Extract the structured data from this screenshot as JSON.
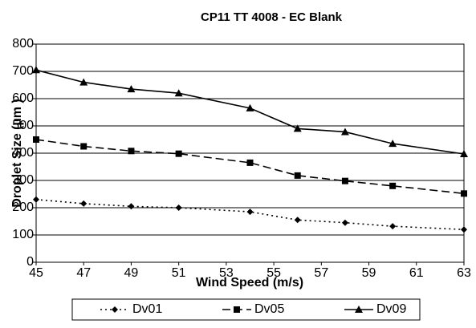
{
  "chart_data": {
    "type": "line",
    "title": "CP11 TT 4008 -  EC Blank",
    "x_label": "Wind Speed (m/s)",
    "y_label": "Droplet Size  (µm )",
    "x": [
      45,
      47,
      49,
      51,
      54,
      56,
      58,
      60,
      63
    ],
    "series": [
      {
        "name": "Dv01",
        "color": "#000000",
        "line_style": "dotted",
        "marker": "diamond",
        "values": [
          230,
          215,
          205,
          200,
          185,
          155,
          145,
          132,
          120
        ]
      },
      {
        "name": "Dv05",
        "color": "#000000",
        "line_style": "dashed",
        "marker": "square",
        "values": [
          450,
          425,
          408,
          398,
          365,
          318,
          298,
          280,
          252
        ]
      },
      {
        "name": "Dv09",
        "color": "#000000",
        "line_style": "solid",
        "marker": "triangle",
        "values": [
          705,
          660,
          635,
          620,
          565,
          490,
          478,
          435,
          397
        ]
      }
    ],
    "xlim": [
      45,
      63
    ],
    "xticks": [
      45,
      47,
      49,
      51,
      53,
      55,
      57,
      59,
      61,
      63
    ],
    "ylim": [
      0,
      800
    ],
    "yticks": [
      0,
      100,
      200,
      300,
      400,
      500,
      600,
      700,
      800
    ],
    "grid": true,
    "legend": "bottom"
  }
}
